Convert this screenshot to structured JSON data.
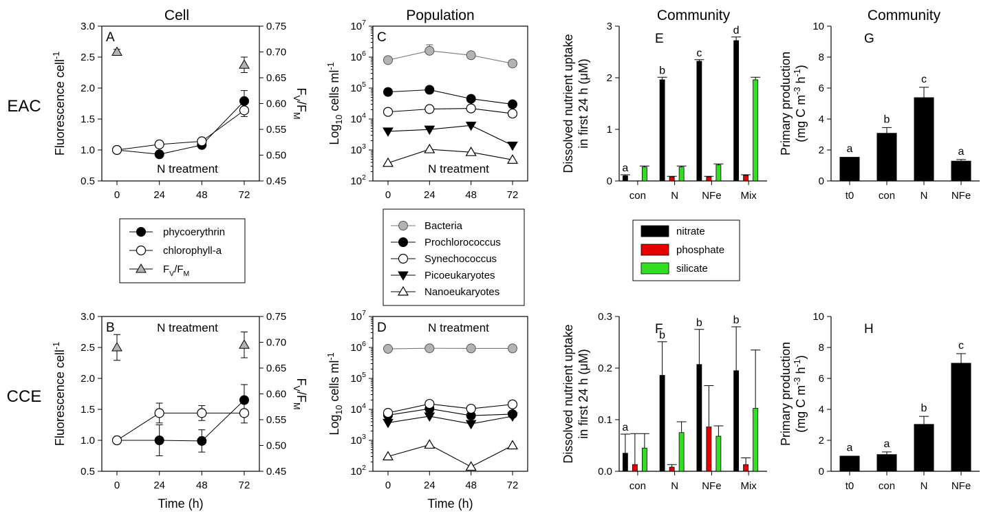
{
  "column_titles": [
    "Cell",
    "Population",
    "Community",
    "Community"
  ],
  "row_labels": [
    "EAC",
    "CCE"
  ],
  "colors": {
    "bacteria": "#b3b3b3",
    "triangle_fill": "#b3b3b3",
    "nitrate": "#000000",
    "phosphate": "#e60000",
    "silicate": "#33dd22"
  },
  "legends": {
    "cell": [
      {
        "label": "phycoerythrin",
        "marker": "filled-circle"
      },
      {
        "label": "chlorophyll-a",
        "marker": "open-circle"
      },
      {
        "label": "FV/FM",
        "marker": "grey-triangle"
      }
    ],
    "population": [
      {
        "label": "Bacteria",
        "marker": "grey-circle"
      },
      {
        "label": "Prochlorococcus",
        "marker": "filled-circle"
      },
      {
        "label": "Synechococcus",
        "marker": "open-circle"
      },
      {
        "label": "Picoeukaryotes",
        "marker": "filled-triangle-down"
      },
      {
        "label": "Nanoeukaryotes",
        "marker": "open-triangle-up"
      }
    ],
    "nutrient": [
      {
        "label": "nitrate",
        "color": "#000000"
      },
      {
        "label": "phosphate",
        "color": "#e60000"
      },
      {
        "label": "silicate",
        "color": "#33dd22"
      }
    ]
  },
  "chart_data": [
    {
      "panel": "A",
      "type": "line",
      "annotation": "N treatment",
      "x": [
        0,
        24,
        48,
        72
      ],
      "xlabel": "",
      "ylabel": "Fluorescence cell-1",
      "ylim": [
        0.5,
        3.0
      ],
      "yticks": [
        "0.5",
        "1.0",
        "1.5",
        "2.0",
        "2.5",
        "3.0"
      ],
      "y2label": "FV/FM",
      "y2lim": [
        0.45,
        0.75
      ],
      "y2ticks": [
        "0.45",
        "0.50",
        "0.55",
        "0.60",
        "0.65",
        "0.70",
        "0.75"
      ],
      "series": [
        {
          "name": "phycoerythrin",
          "axis": "left",
          "values": [
            1.0,
            0.93,
            1.08,
            1.79
          ],
          "errors": [
            0,
            0.04,
            0.04,
            0.17
          ]
        },
        {
          "name": "chlorophyll-a",
          "axis": "left",
          "values": [
            1.0,
            1.09,
            1.14,
            1.64
          ],
          "errors": [
            0,
            0.03,
            0.03,
            0.1
          ]
        },
        {
          "name": "FV/FM",
          "axis": "right",
          "values": [
            0.7,
            null,
            null,
            0.675
          ],
          "errors": [
            0.005,
            0,
            0,
            0.015
          ]
        }
      ]
    },
    {
      "panel": "B",
      "type": "line",
      "annotation": "N treatment",
      "x": [
        0,
        24,
        48,
        72
      ],
      "xlabel": "Time (h)",
      "ylabel": "Fluorescence cell-1",
      "ylim": [
        0.5,
        3.0
      ],
      "yticks": [
        "0.5",
        "1.0",
        "1.5",
        "2.0",
        "2.5",
        "3.0"
      ],
      "y2label": "FV/FM",
      "y2lim": [
        0.45,
        0.75
      ],
      "y2ticks": [
        "0.45",
        "0.50",
        "0.55",
        "0.60",
        "0.65",
        "0.70",
        "0.75"
      ],
      "series": [
        {
          "name": "phycoerythrin",
          "axis": "left",
          "values": [
            1.0,
            1.0,
            0.99,
            1.65
          ],
          "errors": [
            0,
            0.25,
            0.18,
            0.25
          ]
        },
        {
          "name": "chlorophyll-a",
          "axis": "left",
          "values": [
            1.0,
            1.44,
            1.44,
            1.44
          ],
          "errors": [
            0,
            0.16,
            0.12,
            0.16
          ]
        },
        {
          "name": "FV/FM",
          "axis": "right",
          "values": [
            0.69,
            null,
            null,
            0.695
          ],
          "errors": [
            0.025,
            0,
            0,
            0.025
          ]
        }
      ]
    },
    {
      "panel": "C",
      "type": "line",
      "scale": "log",
      "annotation": "N treatment",
      "x": [
        0,
        24,
        48,
        72
      ],
      "xlabel": "",
      "ylabel": "Log10 cells ml-1",
      "ylim": [
        100,
        10000000
      ],
      "series": [
        {
          "name": "Bacteria",
          "values": [
            800000,
            1600000,
            1150000,
            620000
          ],
          "errors_up": [
            0,
            900000,
            0,
            100000
          ]
        },
        {
          "name": "Prochlorococcus",
          "values": [
            75000,
            88000,
            45000,
            30000
          ],
          "errors_up": [
            0,
            0,
            0,
            0
          ]
        },
        {
          "name": "Synechococcus",
          "values": [
            17000,
            21000,
            22000,
            15000
          ],
          "errors_up": [
            0,
            0,
            0,
            0
          ]
        },
        {
          "name": "Picoeukaryotes",
          "values": [
            4000,
            4600,
            6200,
            1400
          ],
          "errors_up": [
            0,
            0,
            0,
            0
          ]
        },
        {
          "name": "Nanoeukaryotes",
          "values": [
            380,
            1050,
            850,
            480
          ],
          "errors_up": [
            0,
            0,
            0,
            0
          ]
        }
      ]
    },
    {
      "panel": "D",
      "type": "line",
      "scale": "log",
      "annotation": "N treatment",
      "x": [
        0,
        24,
        48,
        72
      ],
      "xlabel": "Time (h)",
      "ylabel": "Log10 cells ml-1",
      "ylim": [
        100,
        10000000
      ],
      "series": [
        {
          "name": "Bacteria",
          "values": [
            900000,
            940000,
            930000,
            930000
          ],
          "errors_up": [
            0,
            0,
            0,
            0
          ]
        },
        {
          "name": "Prochlorococcus",
          "values": [
            6500,
            10500,
            6300,
            7000
          ],
          "errors_up": [
            0,
            0,
            0,
            0
          ]
        },
        {
          "name": "Synechococcus",
          "values": [
            7700,
            15000,
            10500,
            14500
          ],
          "errors_up": [
            0,
            0,
            0,
            0
          ]
        },
        {
          "name": "Picoeukaryotes",
          "values": [
            3700,
            6000,
            3400,
            6000
          ],
          "errors_up": [
            0,
            0,
            0,
            0
          ]
        },
        {
          "name": "Nanoeukaryotes",
          "values": [
            300,
            720,
            140,
            680
          ],
          "errors_up": [
            0,
            0,
            0,
            0
          ]
        }
      ]
    },
    {
      "panel": "E",
      "type": "bar",
      "categories": [
        "con",
        "N",
        "NFe",
        "Mix"
      ],
      "ylabel_lines": [
        "Dissolved nutrient uptake",
        "in first 24 h (μM)"
      ],
      "ylim": [
        0,
        3
      ],
      "yticks": [
        "0",
        "1",
        "2",
        "3"
      ],
      "series": [
        {
          "name": "nitrate",
          "values": [
            0.1,
            1.96,
            2.32,
            2.72
          ],
          "errors": [
            0.02,
            0.05,
            0.03,
            0.07
          ]
        },
        {
          "name": "phosphate",
          "values": [
            0.0,
            0.08,
            0.08,
            0.11
          ],
          "errors": [
            0,
            0.01,
            0.01,
            0.01
          ]
        },
        {
          "name": "silicate",
          "values": [
            0.27,
            0.27,
            0.31,
            1.96
          ],
          "errors": [
            0.02,
            0.02,
            0.02,
            0.05
          ]
        }
      ],
      "letters": [
        "a",
        "b",
        "c",
        "d"
      ]
    },
    {
      "panel": "F",
      "type": "bar",
      "categories": [
        "con",
        "N",
        "NFe",
        "Mix"
      ],
      "ylabel_lines": [
        "Dissolved nutrient uptake",
        "in first 24 h (μM)"
      ],
      "ylim": [
        0,
        0.3
      ],
      "yticks": [
        "0.0",
        "0.1",
        "0.2",
        "0.3"
      ],
      "series": [
        {
          "name": "nitrate",
          "values": [
            0.035,
            0.186,
            0.207,
            0.195
          ],
          "errors": [
            0.037,
            0.065,
            0.068,
            0.085
          ]
        },
        {
          "name": "phosphate",
          "values": [
            0.013,
            0.008,
            0.086,
            0.013
          ],
          "errors": [
            0.06,
            0.005,
            0.08,
            0.013
          ]
        },
        {
          "name": "silicate",
          "values": [
            0.045,
            0.075,
            0.068,
            0.122
          ],
          "errors": [
            0.028,
            0.021,
            0.02,
            0.113
          ]
        }
      ],
      "letters": [
        "a",
        "b",
        "b",
        "b"
      ]
    },
    {
      "panel": "G",
      "type": "bar",
      "categories": [
        "t0",
        "con",
        "N",
        "NFe"
      ],
      "ylabel_lines": [
        "Primary production",
        "(mg C m-3 h-1)"
      ],
      "ylim": [
        0,
        10
      ],
      "yticks": [
        "0",
        "2",
        "4",
        "6",
        "8",
        "10"
      ],
      "values": [
        1.55,
        3.1,
        5.4,
        1.3
      ],
      "errors": [
        0,
        0.35,
        0.65,
        0.08
      ],
      "letters": [
        "a",
        "b",
        "c",
        "a"
      ]
    },
    {
      "panel": "H",
      "type": "bar",
      "categories": [
        "t0",
        "con",
        "N",
        "NFe"
      ],
      "ylabel_lines": [
        "Primary production",
        "(mg C m-3 h-1)"
      ],
      "ylim": [
        0,
        10
      ],
      "yticks": [
        "0",
        "2",
        "4",
        "6",
        "8",
        "10"
      ],
      "values": [
        1.0,
        1.1,
        3.05,
        7.0
      ],
      "errors": [
        0,
        0.15,
        0.5,
        0.6
      ],
      "letters": [
        "a",
        "a",
        "b",
        "c"
      ]
    }
  ]
}
